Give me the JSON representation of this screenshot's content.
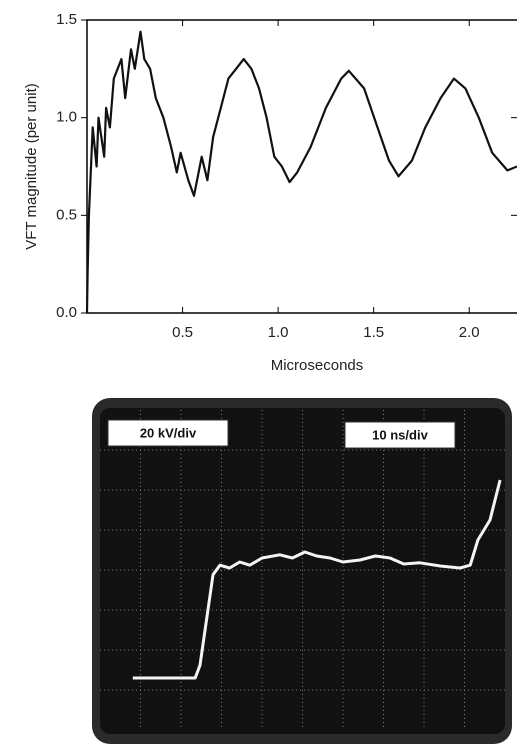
{
  "chart_data": [
    {
      "type": "line",
      "ylabel": "VFT magnitude (per unit)",
      "xlabel": "Microseconds",
      "xlim": [
        0,
        2.25
      ],
      "ylim": [
        0,
        1.5
      ],
      "xticks": [
        0.5,
        {
          "value": 1.0,
          "label": "1.0"
        },
        1.5,
        {
          "value": 2.0,
          "label": "2.0"
        }
      ],
      "yticks": [
        {
          "value": 0.0,
          "label": "0.0"
        },
        0.5,
        {
          "value": 1.0,
          "label": "1.0"
        },
        1.5
      ],
      "color": "#111111",
      "x": [
        0.0,
        0.003,
        0.01,
        0.03,
        0.05,
        0.06,
        0.09,
        0.1,
        0.12,
        0.14,
        0.18,
        0.2,
        0.23,
        0.25,
        0.28,
        0.3,
        0.33,
        0.36,
        0.4,
        0.44,
        0.47,
        0.49,
        0.53,
        0.56,
        0.6,
        0.63,
        0.66,
        0.7,
        0.74,
        0.78,
        0.82,
        0.86,
        0.9,
        0.94,
        0.98,
        1.02,
        1.06,
        1.1,
        1.17,
        1.25,
        1.33,
        1.37,
        1.45,
        1.52,
        1.58,
        1.63,
        1.7,
        1.77,
        1.85,
        1.92,
        1.98,
        2.05,
        2.12,
        2.2,
        2.25
      ],
      "values": [
        0.0,
        0.2,
        0.5,
        0.95,
        0.75,
        1.0,
        0.8,
        1.05,
        0.95,
        1.2,
        1.3,
        1.1,
        1.35,
        1.25,
        1.44,
        1.3,
        1.25,
        1.1,
        1.0,
        0.85,
        0.72,
        0.82,
        0.68,
        0.6,
        0.8,
        0.68,
        0.9,
        1.05,
        1.2,
        1.25,
        1.3,
        1.25,
        1.15,
        1.0,
        0.8,
        0.75,
        0.67,
        0.72,
        0.85,
        1.05,
        1.2,
        1.24,
        1.15,
        0.95,
        0.78,
        0.7,
        0.78,
        0.95,
        1.1,
        1.2,
        1.15,
        1.0,
        0.82,
        0.73,
        0.75
      ]
    },
    {
      "type": "scope",
      "annotations": [
        "20 kV/div",
        "10 ns/div"
      ],
      "xlim": [
        0,
        10
      ],
      "ylim": [
        0,
        8
      ],
      "grid": true,
      "color": "#f4f4f4",
      "x": [
        0.81,
        2.35,
        2.47,
        2.79,
        2.96,
        3.2,
        3.45,
        3.7,
        4.0,
        4.44,
        4.75,
        5.06,
        5.35,
        5.68,
        6.0,
        6.42,
        6.8,
        7.16,
        7.5,
        7.9,
        8.4,
        8.89,
        9.14,
        9.33,
        9.63,
        9.88
      ],
      "values": [
        1.3,
        1.3,
        1.62,
        3.88,
        4.12,
        4.05,
        4.2,
        4.12,
        4.3,
        4.38,
        4.3,
        4.45,
        4.35,
        4.3,
        4.2,
        4.25,
        4.35,
        4.3,
        4.15,
        4.18,
        4.1,
        4.05,
        4.12,
        4.75,
        5.25,
        6.25
      ]
    }
  ]
}
